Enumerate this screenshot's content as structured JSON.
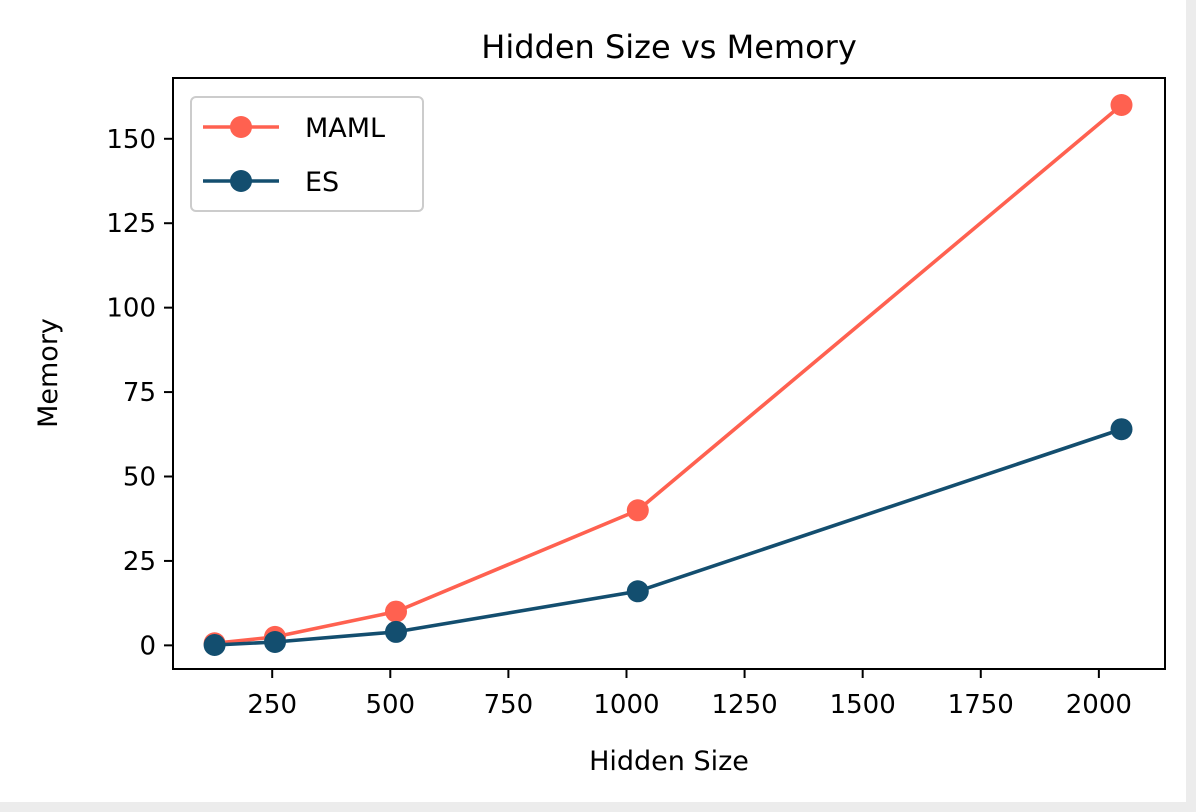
{
  "chart_data": {
    "type": "line",
    "title": "Hidden Size vs Memory",
    "xlabel": "Hidden Size",
    "ylabel": "Memory",
    "x": [
      128,
      256,
      512,
      1024,
      2048
    ],
    "series": [
      {
        "name": "MAML",
        "color": "#ff6150",
        "values": [
          0.6,
          2.5,
          10,
          40,
          160
        ]
      },
      {
        "name": "ES",
        "color": "#134e6f",
        "values": [
          0.1,
          1,
          4,
          16,
          64
        ]
      }
    ],
    "xlim": [
      40,
      2140
    ],
    "ylim": [
      -7,
      168
    ],
    "xticks": [
      250,
      500,
      750,
      1000,
      1250,
      1500,
      1750,
      2000
    ],
    "yticks": [
      0,
      25,
      50,
      75,
      100,
      125,
      150
    ],
    "grid": false,
    "legend_position": "top-left",
    "marker": "circle"
  }
}
